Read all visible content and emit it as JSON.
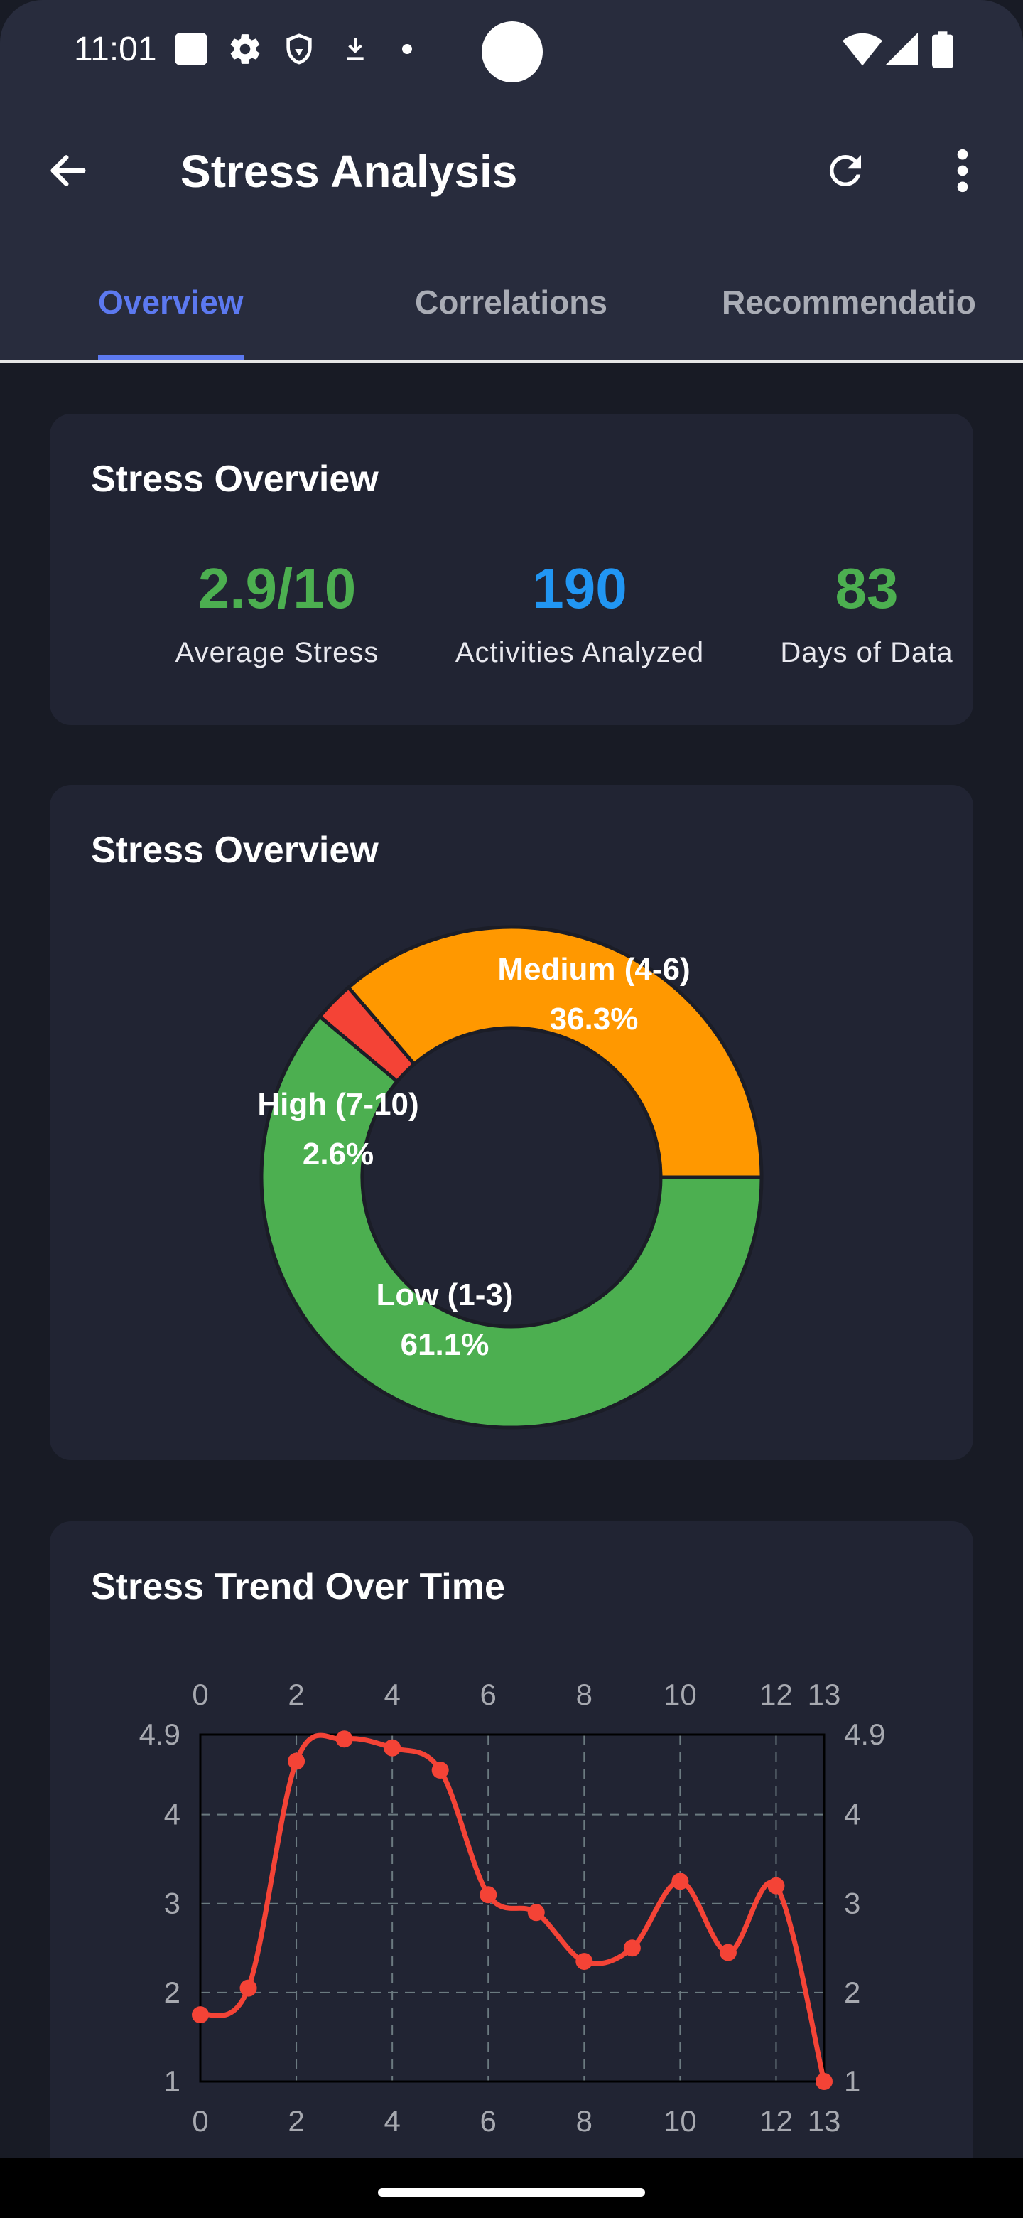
{
  "status_bar": {
    "time": "11:01",
    "icons": [
      "square-icon",
      "gear-icon",
      "shield-icon",
      "download-icon",
      "dot-icon",
      "wifi-icon",
      "signal-icon",
      "battery-icon"
    ]
  },
  "app_bar": {
    "title": "Stress Analysis",
    "back_icon": "arrow-left-icon",
    "refresh_icon": "refresh-icon",
    "menu_icon": "more-vert-icon"
  },
  "tabs": [
    {
      "label": "Overview",
      "active": true
    },
    {
      "label": "Correlations",
      "active": false
    },
    {
      "label": "Recommendatio",
      "active": false
    }
  ],
  "overview_card": {
    "title": "Stress Overview",
    "stats": [
      {
        "value": "2.9/10",
        "label": "Average Stress",
        "color": "#4caf50"
      },
      {
        "value": "190",
        "label": "Activities Analyzed",
        "color": "#2196f3"
      },
      {
        "value": "83",
        "label": "Days of Data",
        "color": "#4caf50"
      }
    ]
  },
  "donut_card": {
    "title": "Stress Overview",
    "chart_data": {
      "type": "pie",
      "donut": true,
      "slices": [
        {
          "label": "Low (1-3)",
          "percent_label": "61.1%",
          "value": 61.1,
          "color": "#4caf50"
        },
        {
          "label": "High (7-10)",
          "percent_label": "2.6%",
          "value": 2.6,
          "color": "#f44336"
        },
        {
          "label": "Medium (4-6)",
          "percent_label": "36.3%",
          "value": 36.3,
          "color": "#ff9800"
        }
      ]
    }
  },
  "trend_card": {
    "title": "Stress Trend Over Time",
    "chart_data": {
      "type": "line",
      "x": [
        0,
        1,
        2,
        3,
        4,
        5,
        6,
        7,
        8,
        9,
        10,
        11,
        12,
        13
      ],
      "series": [
        {
          "values": [
            1.75,
            2.05,
            4.6,
            4.85,
            4.75,
            4.5,
            3.1,
            2.9,
            2.35,
            2.5,
            3.25,
            2.45,
            3.2,
            1.0
          ],
          "color": "#f44336"
        }
      ],
      "xlim": [
        0,
        13
      ],
      "ylim": [
        1,
        4.9
      ],
      "x_ticks": [
        "0",
        "2",
        "4",
        "6",
        "8",
        "10",
        "12",
        "13"
      ],
      "x_tick_values": [
        0,
        2,
        4,
        6,
        8,
        10,
        12,
        13
      ],
      "y_ticks": [
        "1",
        "2",
        "3",
        "4",
        "4.9"
      ],
      "y_tick_values": [
        1,
        2,
        3,
        4,
        4.9
      ],
      "grid": true
    }
  }
}
